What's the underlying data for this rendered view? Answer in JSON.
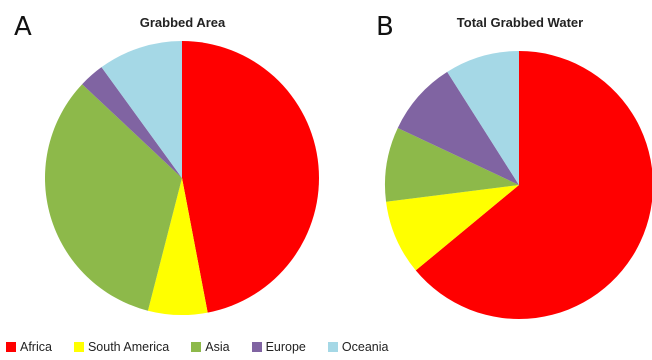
{
  "chart_data": [
    {
      "type": "pie",
      "panel_label": "A",
      "title": "Grabbed Area",
      "categories": [
        "Africa",
        "South America",
        "Asia",
        "Europe",
        "Oceania"
      ],
      "values": [
        47,
        7,
        33,
        3,
        10
      ],
      "unit": "",
      "start": "12 o'clock",
      "direction": "clockwise"
    },
    {
      "type": "pie",
      "panel_label": "B",
      "title": "Total Grabbed Water",
      "categories": [
        "Africa",
        "South America",
        "Asia",
        "Europe",
        "Oceania"
      ],
      "values": [
        64,
        9,
        9,
        9,
        9
      ],
      "unit": "",
      "start": "12 o'clock",
      "direction": "clockwise"
    }
  ],
  "legend": {
    "placement": "bottom-left",
    "items": [
      {
        "label": "Africa",
        "color": "#ff0000"
      },
      {
        "label": "South America",
        "color": "#ffff00"
      },
      {
        "label": "Asia",
        "color": "#8db94a"
      },
      {
        "label": "Europe",
        "color": "#8064a2"
      },
      {
        "label": "Oceania",
        "color": "#a5d8e6"
      }
    ]
  }
}
